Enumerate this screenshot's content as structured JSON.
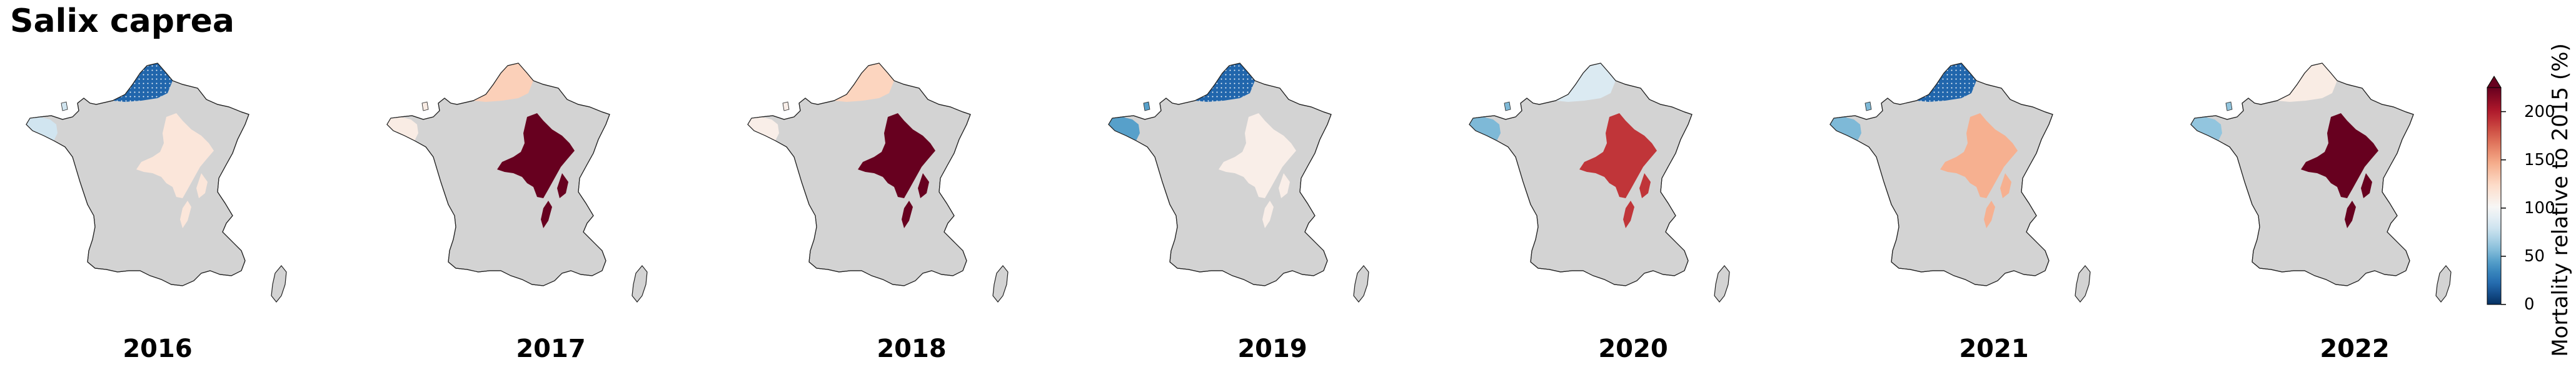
{
  "title": "Salix caprea",
  "colorbar": {
    "label": "Mortality relative to 2015 (%)",
    "ticks": [
      "0",
      "50",
      "100",
      "150",
      "200"
    ],
    "tick_values": [
      0,
      50,
      100,
      150,
      200
    ],
    "range": [
      0,
      225
    ],
    "extend": "max",
    "colormap": "RdBu_r",
    "colormap_stops": [
      "#053061",
      "#2166ac",
      "#4393c3",
      "#92c5de",
      "#d1e5f0",
      "#f7f7f7",
      "#fddbc7",
      "#f4a582",
      "#d6604d",
      "#b2182b",
      "#67001f"
    ]
  },
  "base_color": "#d3d3d3",
  "hatched_regions": "dotted hatch on lowest-value region",
  "maps": [
    {
      "year": "2016",
      "regions": {
        "brittany": 80,
        "normandy_north": 20,
        "east": 115
      },
      "hatched": [
        "normandy_north"
      ]
    },
    {
      "year": "2017",
      "regions": {
        "brittany": 110,
        "normandy_north": 130,
        "east": 225
      },
      "hatched": []
    },
    {
      "year": "2018",
      "regions": {
        "brittany": 108,
        "normandy_north": 128,
        "east": 225
      },
      "hatched": []
    },
    {
      "year": "2019",
      "regions": {
        "brittany": 45,
        "normandy_north": 20,
        "east": 108
      },
      "hatched": [
        "normandy_north"
      ]
    },
    {
      "year": "2020",
      "regions": {
        "brittany": 55,
        "normandy_north": 85,
        "east": 190
      },
      "hatched": []
    },
    {
      "year": "2021",
      "regions": {
        "brittany": 55,
        "normandy_north": 20,
        "east": 145
      },
      "hatched": [
        "normandy_north"
      ]
    },
    {
      "year": "2022",
      "regions": {
        "brittany": 60,
        "normandy_north": 110,
        "east": 225
      },
      "hatched": []
    }
  ]
}
